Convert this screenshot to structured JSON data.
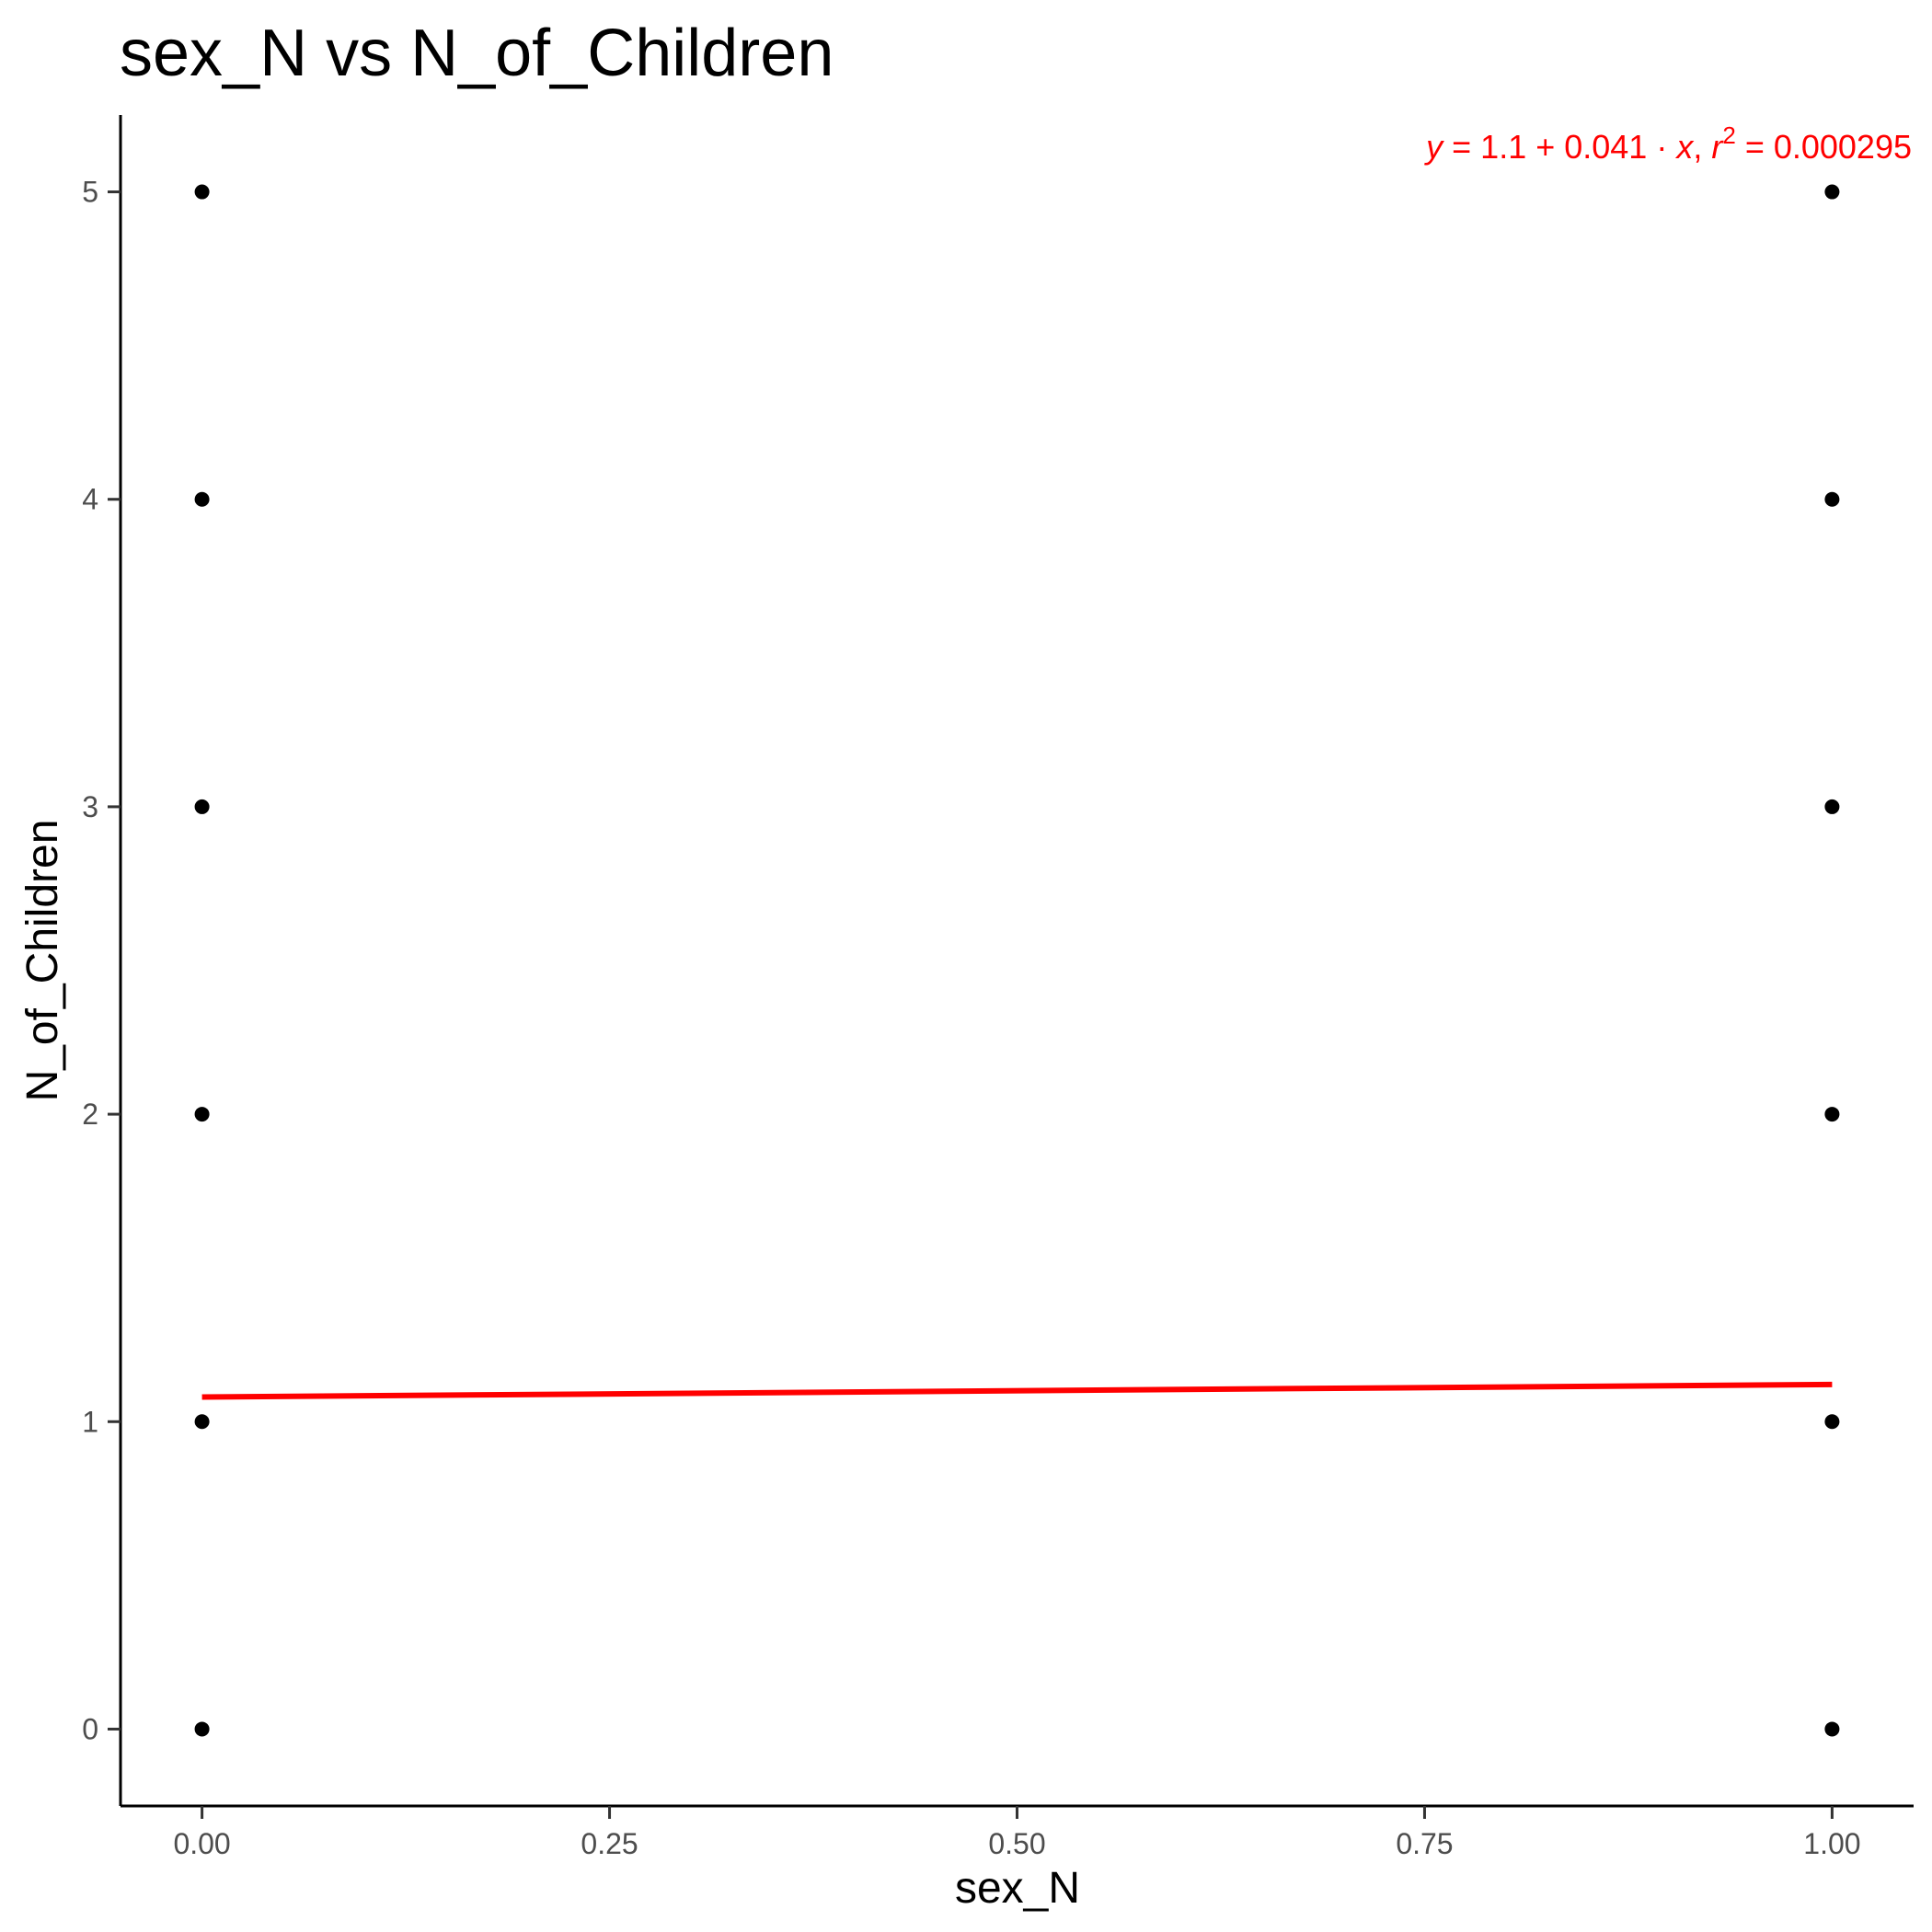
{
  "chart_data": {
    "type": "scatter",
    "title": "sex_N vs N_of_Children",
    "xlabel": "sex_N",
    "ylabel": "N_of_Children",
    "xlim": [
      -0.05,
      1.05
    ],
    "ylim": [
      -0.25,
      5.25
    ],
    "x_ticks": [
      0,
      0.25,
      0.5,
      0.75,
      1
    ],
    "x_tick_labels": [
      "0.00",
      "0.25",
      "0.50",
      "0.75",
      "1.00"
    ],
    "y_ticks": [
      0,
      1,
      2,
      3,
      4,
      5
    ],
    "y_tick_labels": [
      "0",
      "1",
      "2",
      "3",
      "4",
      "5"
    ],
    "points": [
      {
        "x": 0,
        "y": 0
      },
      {
        "x": 0,
        "y": 1
      },
      {
        "x": 0,
        "y": 2
      },
      {
        "x": 0,
        "y": 3
      },
      {
        "x": 0,
        "y": 4
      },
      {
        "x": 0,
        "y": 5
      },
      {
        "x": 1,
        "y": 0
      },
      {
        "x": 1,
        "y": 1
      },
      {
        "x": 1,
        "y": 2
      },
      {
        "x": 1,
        "y": 3
      },
      {
        "x": 1,
        "y": 4
      },
      {
        "x": 1,
        "y": 5
      }
    ],
    "point_color": "#000000",
    "regression": {
      "intercept": 1.08,
      "slope": 0.041,
      "x_range": [
        0,
        1
      ],
      "color": "#ff0000"
    },
    "annotation": {
      "y_var": "y",
      "eq_body": " = 1.1 + 0.041 · ",
      "x_var": "x",
      "sep": ",  ",
      "r_var": "r",
      "r_exp": "2",
      "r_value": " = 0.000295",
      "color": "#ff0000",
      "placement": "top-right"
    },
    "grid": false,
    "legend": "none"
  }
}
